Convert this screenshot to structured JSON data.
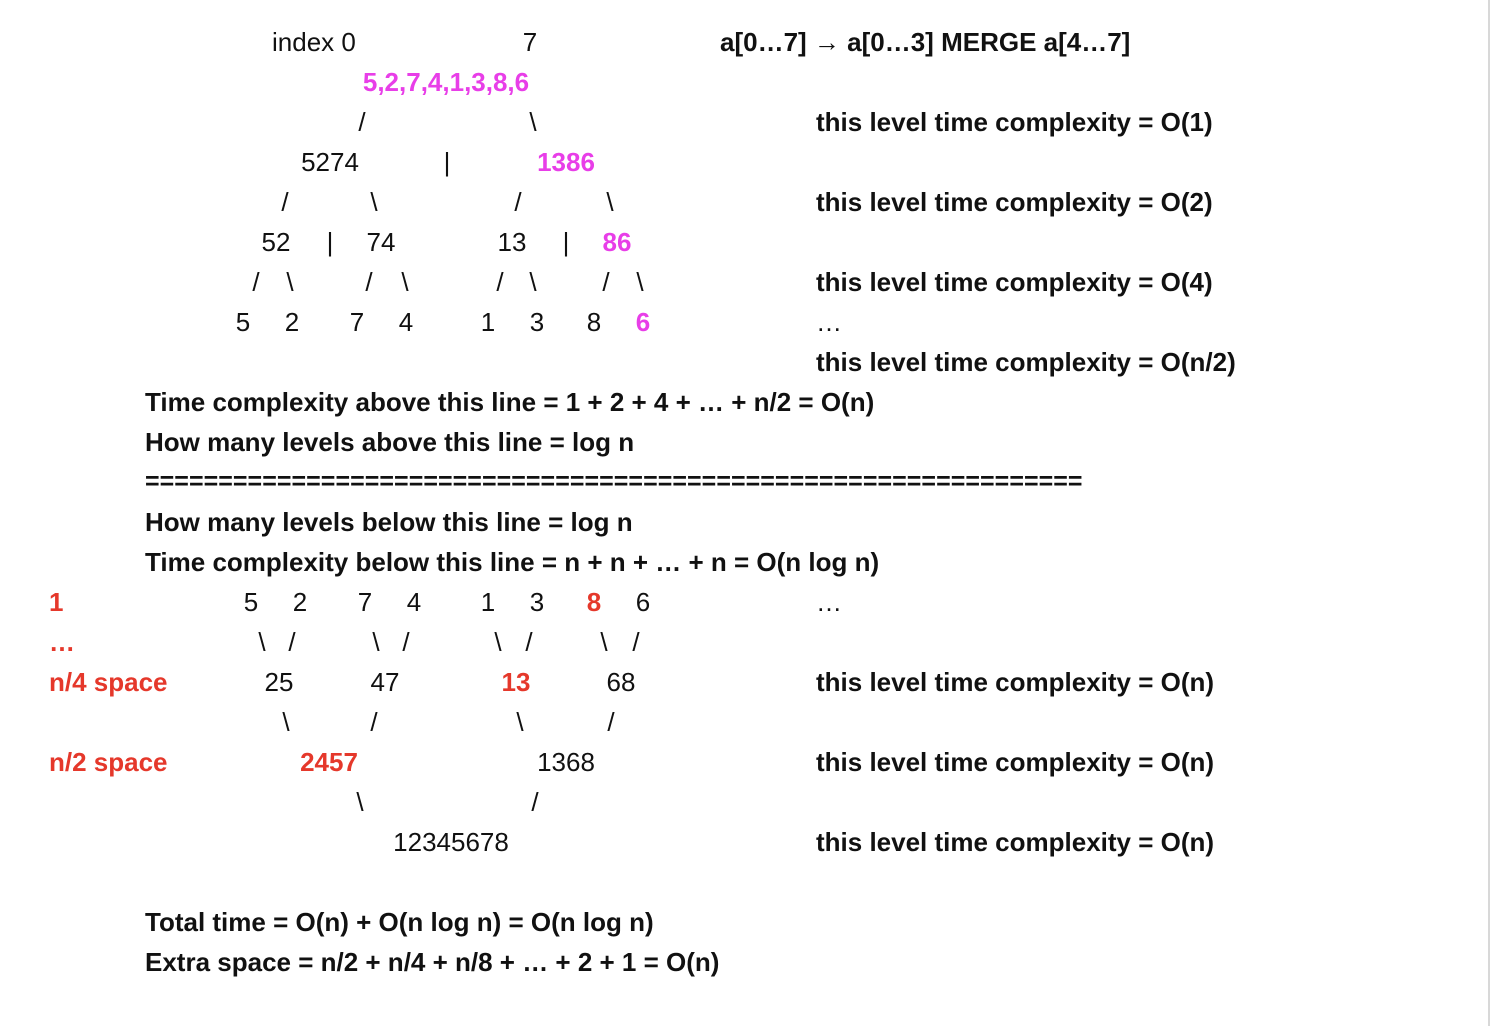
{
  "index_label": "index 0",
  "index_end": "7",
  "merge_heading": "a[0…7] → a[0…3] MERGE a[4…7]",
  "split_tree": {
    "root": "5,2,7,4,1,3,8,6",
    "edge_left": "/",
    "edge_right": "\\",
    "divider": "|",
    "level1_left": "5274",
    "level1_right": "1386",
    "level2_a": "52",
    "level2_b": "74",
    "level2_c": "13",
    "level2_d": "86",
    "leaves": [
      "5",
      "2",
      "7",
      "4",
      "1",
      "3",
      "8",
      "6"
    ]
  },
  "split_complexities": {
    "level0": "this level time complexity = O(1)",
    "level1": "this level time complexity = O(2)",
    "level2": "this level time complexity = O(4)",
    "ellipsis": "…",
    "last": "this level time complexity = O(n/2)"
  },
  "summary_above": {
    "time": "Time complexity above this line = 1 + 2 + 4 + … + n/2 = O(n)",
    "levels": "How many levels above this line = log n"
  },
  "separator": "================================================================",
  "summary_below": {
    "levels": "How many levels below this line = log n",
    "time": "Time complexity below this line = n + n + … + n = O(n log n)"
  },
  "space_labels": {
    "one": "1",
    "ellipsis": "…",
    "n4": "n/4 space",
    "n2": "n/2 space"
  },
  "merge_tree": {
    "leaves": [
      "5",
      "2",
      "7",
      "4",
      "1",
      "3",
      "8",
      "6"
    ],
    "level1": [
      "25",
      "47",
      "13",
      "68"
    ],
    "level2": [
      "2457",
      "1368"
    ],
    "root": "12345678"
  },
  "merge_complexities": {
    "ellipsis": "…",
    "level1": "this level time complexity = O(n)",
    "level2": "this level time complexity = O(n)",
    "root": "this level time complexity = O(n)"
  },
  "totals": {
    "time": "Total time = O(n) + O(n log n) = O(n log n)",
    "space": "Extra space = n/2 + n/4 + n/8 + … + 2 + 1 = O(n)"
  },
  "colors": {
    "highlight_pink": "#e83ee8",
    "highlight_red": "#e5382b",
    "text": "#111111"
  }
}
